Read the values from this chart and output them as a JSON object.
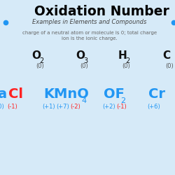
{
  "bg_color": "#d6eaf8",
  "title": "Oxidation Number",
  "title_color": "#000000",
  "title_fontsize": 13.5,
  "subtitle": "Examples in Elements and Compounds",
  "subtitle_color": "#444444",
  "subtitle_fontsize": 6.0,
  "dot_color": "#2196F3",
  "body_line1": "charge of a neutral atom or molecule is 0; total charge",
  "body_line2": "ion is the ionic charge.",
  "body_fontsize": 5.0,
  "body_color": "#666666",
  "fig_width": 2.5,
  "fig_height": 2.5,
  "dpi": 100
}
